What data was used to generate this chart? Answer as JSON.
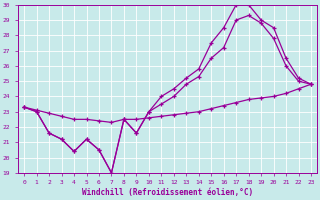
{
  "xlabel": "Windchill (Refroidissement éolien,°C)",
  "background_color": "#c8eaea",
  "line_color": "#990099",
  "grid_color": "#ffffff",
  "xlim": [
    -0.5,
    23.5
  ],
  "ylim": [
    19,
    30
  ],
  "xticks": [
    0,
    1,
    2,
    3,
    4,
    5,
    6,
    7,
    8,
    9,
    10,
    11,
    12,
    13,
    14,
    15,
    16,
    17,
    18,
    19,
    20,
    21,
    22,
    23
  ],
  "yticks": [
    19,
    20,
    21,
    22,
    23,
    24,
    25,
    26,
    27,
    28,
    29,
    30
  ],
  "line1_x": [
    0,
    1,
    2,
    3,
    4,
    5,
    6,
    7,
    8,
    9,
    10,
    11,
    12,
    13,
    14,
    15,
    16,
    17,
    18,
    19,
    20,
    21,
    22,
    23
  ],
  "line1_y": [
    23.3,
    23.0,
    21.6,
    21.2,
    20.4,
    21.2,
    20.5,
    19.0,
    22.5,
    21.6,
    23.0,
    24.0,
    24.5,
    25.2,
    25.8,
    27.5,
    28.5,
    30.0,
    30.0,
    29.0,
    28.5,
    26.5,
    25.2,
    24.8
  ],
  "line2_x": [
    0,
    1,
    2,
    3,
    4,
    5,
    6,
    7,
    8,
    9,
    10,
    11,
    12,
    13,
    14,
    15,
    16,
    17,
    18,
    19,
    20,
    21,
    22,
    23
  ],
  "line2_y": [
    23.3,
    23.0,
    21.6,
    21.2,
    20.4,
    21.2,
    20.5,
    19.0,
    22.5,
    21.6,
    23.0,
    23.5,
    24.0,
    24.8,
    25.3,
    26.5,
    27.2,
    29.0,
    29.3,
    28.8,
    27.8,
    26.0,
    25.0,
    24.8
  ],
  "line3_x": [
    0,
    1,
    2,
    3,
    4,
    5,
    6,
    7,
    8,
    9,
    10,
    11,
    12,
    13,
    14,
    15,
    16,
    17,
    18,
    19,
    20,
    21,
    22,
    23
  ],
  "line3_y": [
    23.3,
    23.1,
    22.9,
    22.7,
    22.5,
    22.5,
    22.4,
    22.3,
    22.5,
    22.5,
    22.6,
    22.7,
    22.8,
    22.9,
    23.0,
    23.2,
    23.4,
    23.6,
    23.8,
    23.9,
    24.0,
    24.2,
    24.5,
    24.8
  ],
  "figsize": [
    3.2,
    2.0
  ],
  "dpi": 100
}
